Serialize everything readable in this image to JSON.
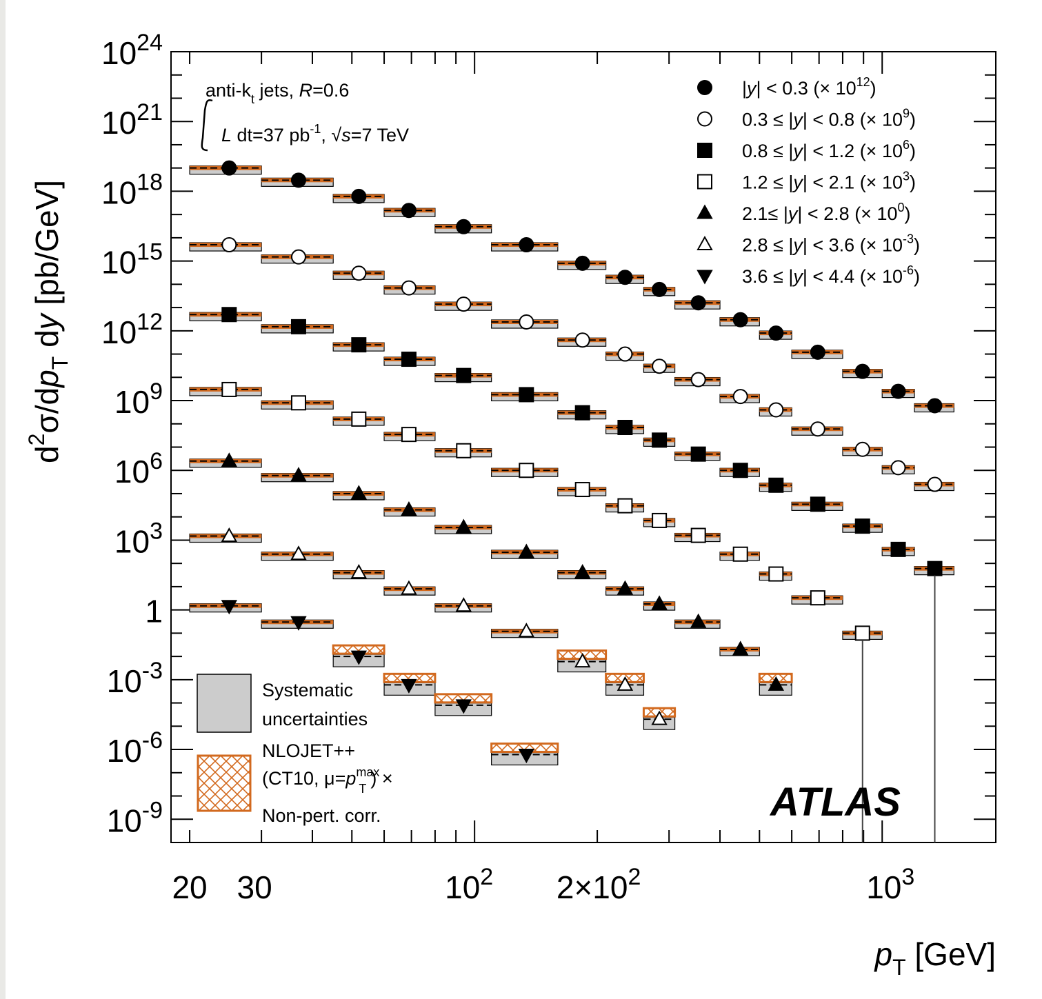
{
  "chart_data": {
    "type": "scatter",
    "title": "",
    "x_scale": "log",
    "y_scale": "log",
    "xlim": [
      18,
      1900
    ],
    "ylim": [
      1e-10,
      1e+24
    ],
    "xlabel": "p_T [GeV]",
    "ylabel": "d²σ/dp_T dy [pb/GeV]",
    "x_tick_labels": [
      "20",
      "30",
      "10²",
      "2×10²",
      "10³"
    ],
    "y_tick_labels": [
      "10²⁴",
      "10²¹",
      "10¹⁸",
      "10¹⁵",
      "10¹²",
      "10⁹",
      "10⁶",
      "10³",
      "1",
      "10⁻³",
      "10⁻⁶",
      "10⁻⁹"
    ],
    "annotations": {
      "jets": "anti-kt jets, R=0.6",
      "lumi": "∫L dt=37 pb⁻¹, √s=7 TeV",
      "experiment": "ATLAS"
    },
    "legend_position": "top-right",
    "band_legend": {
      "systematic": [
        "Systematic",
        "uncertainties"
      ],
      "theory": [
        "NLOJET++",
        "(CT10, μ=p_T^max) ×",
        "Non-pert. corr."
      ]
    },
    "colors": {
      "theory": "#d2691e",
      "systematic": "#cccccc",
      "data": "#000000"
    },
    "bins": [
      [
        20,
        30
      ],
      [
        30,
        45
      ],
      [
        45,
        60
      ],
      [
        60,
        80
      ],
      [
        80,
        110
      ],
      [
        110,
        160
      ],
      [
        160,
        210
      ],
      [
        210,
        260
      ],
      [
        260,
        310
      ],
      [
        310,
        400
      ],
      [
        400,
        500
      ],
      [
        500,
        600
      ],
      [
        600,
        800
      ],
      [
        800,
        1000
      ],
      [
        1000,
        1200
      ],
      [
        1200,
        1500
      ]
    ],
    "bin_centers": [
      25,
      37,
      52,
      69,
      94,
      134,
      184,
      234,
      284,
      354,
      449,
      549,
      695,
      895,
      1095,
      1346
    ],
    "series": [
      {
        "name": "|y| < 0.3 (× 10¹²)",
        "marker": "circle-filled",
        "first_bin": 0,
        "values": [
          1e+19,
          3e+18,
          6e+17,
          1.5e+17,
          3e+16,
          5000000000000000.0,
          800000000000000.0,
          200000000000000.0,
          60000000000000.0,
          16000000000000.0,
          3000000000000.0,
          800000000000.0,
          120000000000.0,
          18000000000.0,
          2500000000.0,
          600000000.0
        ]
      },
      {
        "name": "0.3 ≤ |y| < 0.8 (× 10⁹)",
        "marker": "circle-open",
        "first_bin": 0,
        "values": [
          5000000000000000.0,
          1500000000000000.0,
          300000000000000.0,
          70000000000000.0,
          14000000000000.0,
          2400000000000.0,
          400000000000.0,
          100000000000.0,
          30000000000.0,
          8000000000.0,
          1500000000.0,
          400000000.0,
          60000000.0,
          8000000.0,
          1300000.0,
          250000.0
        ]
      },
      {
        "name": "0.8 ≤ |y| < 1.2 (× 10⁶)",
        "marker": "square-filled",
        "first_bin": 0,
        "values": [
          5000000000000.0,
          1500000000000.0,
          250000000000.0,
          60000000000.0,
          12000000000.0,
          1800000000.0,
          300000000.0,
          70000000.0,
          20000000.0,
          5000000.0,
          1000000.0,
          230000.0,
          35000.0,
          4000.0,
          400.0,
          60.0
        ]
      },
      {
        "name": "1.2 ≤ |y| < 2.1 (× 10³)",
        "marker": "square-open",
        "first_bin": 0,
        "values": [
          3000000000.0,
          800000000.0,
          160000000.0,
          35000000.0,
          7000000.0,
          1000000.0,
          150000.0,
          30000.0,
          7000.0,
          1600.0,
          250.0,
          35.0,
          3.3,
          0.1
        ]
      },
      {
        "name": "2.1 ≤ |y| < 2.8 (× 10⁰)",
        "marker": "triangle-up-filled",
        "first_bin": 0,
        "values": [
          2500000.0,
          600000.0,
          100000.0,
          20000.0,
          3500.0,
          300.0,
          40.0,
          8,
          1.8,
          0.3,
          0.02,
          0.0006
        ]
      },
      {
        "name": "2.8 ≤ |y| < 3.6 (× 10⁻³)",
        "marker": "triangle-up-open",
        "first_bin": 0,
        "values": [
          1500.0,
          250.0,
          40.0,
          8,
          1.5,
          0.12,
          0.006,
          0.0006,
          2e-05
        ]
      },
      {
        "name": "3.6 ≤ |y| < 4.4 (× 10⁻⁶)",
        "marker": "triangle-down-filled",
        "first_bin": 0,
        "values": [
          1.5,
          0.3,
          0.01,
          0.0006,
          8e-05,
          6e-07
        ]
      }
    ]
  }
}
